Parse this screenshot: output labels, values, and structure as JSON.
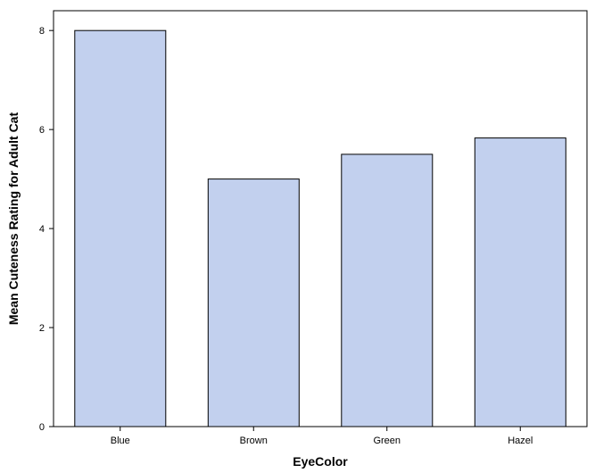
{
  "chart_data": {
    "type": "bar",
    "categories": [
      "Blue",
      "Brown",
      "Green",
      "Hazel"
    ],
    "values": [
      8.0,
      5.0,
      5.5,
      5.83
    ],
    "xlabel": "EyeColor",
    "ylabel": "Mean Cuteness Rating for Adult Cat",
    "ylim": [
      0,
      8.4
    ],
    "yticks": [
      0,
      2,
      4,
      6,
      8
    ],
    "grid": false,
    "colors": {
      "bar_fill": "#c2d0ee",
      "bar_stroke": "#000000",
      "axis": "#000000",
      "background": "#ffffff"
    }
  }
}
